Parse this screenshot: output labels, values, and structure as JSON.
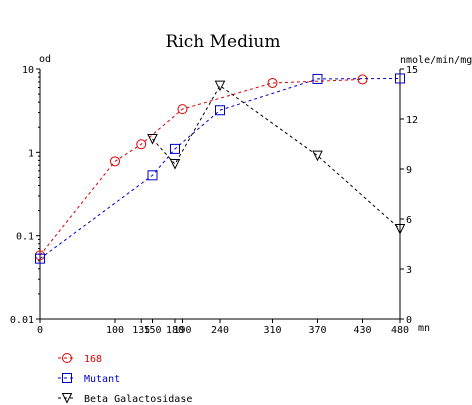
{
  "chart_data": {
    "type": "line",
    "title": "Rich Medium",
    "ylabel_left": "od",
    "ylabel_right": "nmole/min/mg",
    "xlabel_unit": "mn",
    "x_ticks": [
      0,
      100,
      135,
      150,
      180,
      190,
      240,
      310,
      370,
      430,
      480
    ],
    "x_tick_labels": [
      "0",
      "100",
      "135",
      "150",
      "180",
      "190",
      "240",
      "310",
      "370",
      "430",
      "480"
    ],
    "xlim": [
      0,
      480
    ],
    "y_left": {
      "scale": "log",
      "lim": [
        0.01,
        10
      ],
      "ticks": [
        0.01,
        0.1,
        1,
        10
      ],
      "tick_labels": [
        "0.01",
        "0.1",
        "1",
        "10"
      ]
    },
    "y_right": {
      "scale": "linear",
      "lim": [
        0,
        15
      ],
      "ticks": [
        0,
        3,
        6,
        9,
        12,
        15
      ],
      "tick_labels": [
        "0",
        "3",
        "6",
        "9",
        "12",
        "15"
      ]
    },
    "grid": false,
    "legend_position": "bottom-left",
    "series": [
      {
        "name": "168",
        "axis": "left",
        "marker": "circle",
        "color": "#dd0000",
        "x": [
          0,
          100,
          135,
          190,
          310,
          430
        ],
        "y": [
          0.058,
          0.78,
          1.25,
          3.3,
          6.8,
          7.5
        ]
      },
      {
        "name": "Mutant",
        "axis": "left",
        "marker": "square",
        "color": "#0000cc",
        "x": [
          0,
          150,
          180,
          240,
          370,
          480
        ],
        "y": [
          0.053,
          0.53,
          1.1,
          3.2,
          7.6,
          7.7
        ]
      },
      {
        "name": "Beta Galactosidase",
        "axis": "right",
        "marker": "triangle-down",
        "color": "#000000",
        "x": [
          150,
          180,
          240,
          370,
          480
        ],
        "y": [
          10.8,
          9.3,
          14.0,
          9.8,
          5.4
        ]
      }
    ]
  }
}
